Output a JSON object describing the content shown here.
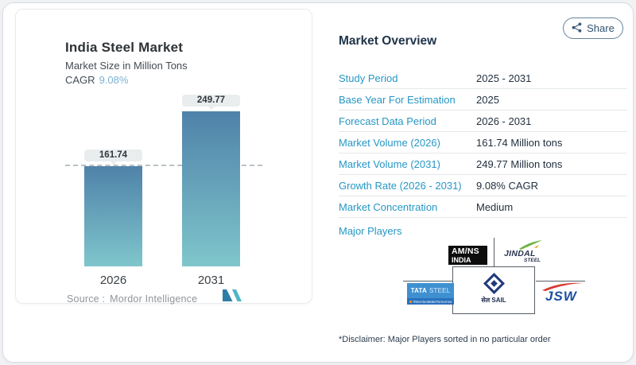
{
  "chart_card": {
    "title": "India Steel Market",
    "subtitle": "Market Size in Million Tons",
    "cagr_label": "CAGR",
    "cagr_value": "9.08%",
    "source_label": "Source :",
    "source_value": "Mordor Intelligence"
  },
  "chart_data": {
    "type": "bar",
    "title": "India Steel Market",
    "subtitle": "Market Size in Million Tons",
    "cagr": "9.08%",
    "categories": [
      "2026",
      "2031"
    ],
    "values": [
      161.74,
      249.77
    ],
    "value_labels": [
      "161.74",
      "249.77"
    ],
    "unit": "Million Tons",
    "ylim": [
      0,
      260
    ],
    "reference_line": {
      "y": 161.74,
      "style": "dashed",
      "color": "#b9c0c5"
    },
    "bar_gradient_top": "#4f82a9",
    "bar_gradient_bottom": "#7fc6cc",
    "grid": false,
    "legend": false
  },
  "share": {
    "label": "Share",
    "icon": "share-nodes-icon"
  },
  "overview": {
    "heading": "Market Overview",
    "rows": [
      {
        "label": "Study Period",
        "value": "2025 - 2031"
      },
      {
        "label": "Base Year For Estimation",
        "value": "2025"
      },
      {
        "label": "Forecast Data Period",
        "value": "2026 - 2031"
      },
      {
        "label": "Market Volume (2026)",
        "value": "161.74 Million tons"
      },
      {
        "label": "Market Volume (2031)",
        "value": "249.77 Million tons"
      },
      {
        "label": "Growth Rate (2026 - 2031)",
        "value": "9.08% CAGR"
      },
      {
        "label": "Market Concentration",
        "value": "Medium"
      }
    ],
    "major_players_label": "Major Players",
    "players": {
      "amns": {
        "line1": "AM/NS",
        "line2": "INDIA"
      },
      "jindal": {
        "name": "JINDAL",
        "sub": "STEEL"
      },
      "tata": {
        "name": "TATA",
        "sub": "STEEL",
        "tagline": "#WeAlsoMakeTomorrow"
      },
      "sail": {
        "caption": "सेल SAIL"
      },
      "jsw": {
        "name": "JSW"
      }
    },
    "disclaimer": "*Disclaimer: Major Players sorted in no particular order"
  },
  "colors": {
    "accent_blue": "#2697c5",
    "value_navy": "#22303f",
    "cagr_blue": "#7cb1d3",
    "page_bg": "#f1f2f4"
  }
}
